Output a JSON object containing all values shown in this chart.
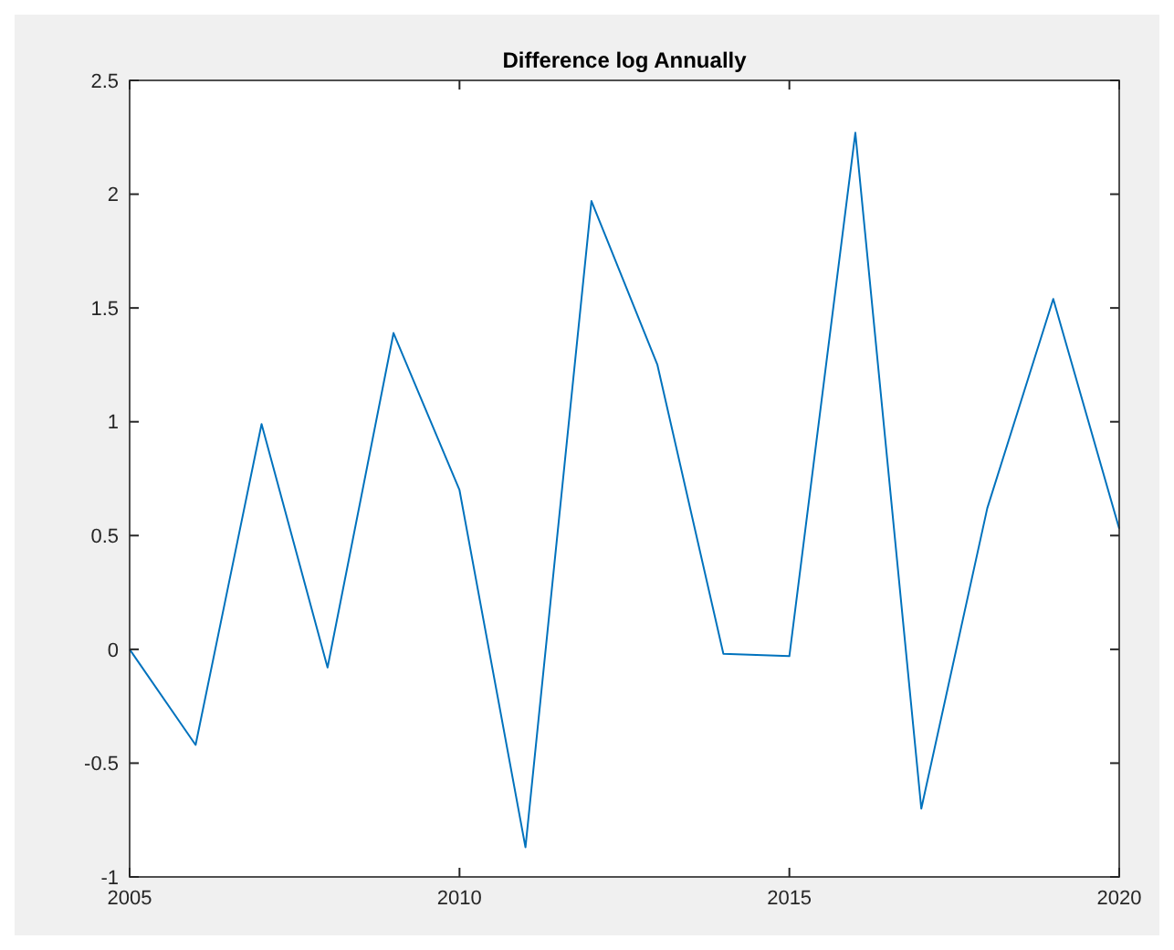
{
  "chart_data": {
    "type": "line",
    "title": "Difference log Annually",
    "x": [
      2005,
      2006,
      2007,
      2008,
      2009,
      2010,
      2011,
      2012,
      2013,
      2014,
      2015,
      2016,
      2017,
      2018,
      2019,
      2020
    ],
    "series": [
      {
        "color": "#0072bd",
        "values": [
          0,
          -0.42,
          0.99,
          -0.08,
          1.39,
          0.7,
          -0.87,
          1.97,
          1.25,
          -0.02,
          -0.03,
          2.27,
          -0.7,
          0.62,
          1.54,
          0.53
        ]
      }
    ],
    "xlim": [
      2005,
      2020
    ],
    "xticks": [
      2005,
      2010,
      2015,
      2020
    ],
    "ylim": [
      -1,
      2.5
    ],
    "yticks": [
      -1,
      -0.5,
      0,
      0.5,
      1,
      1.5,
      2,
      2.5
    ],
    "grid": false,
    "marker": "none",
    "line_style": "solid"
  }
}
